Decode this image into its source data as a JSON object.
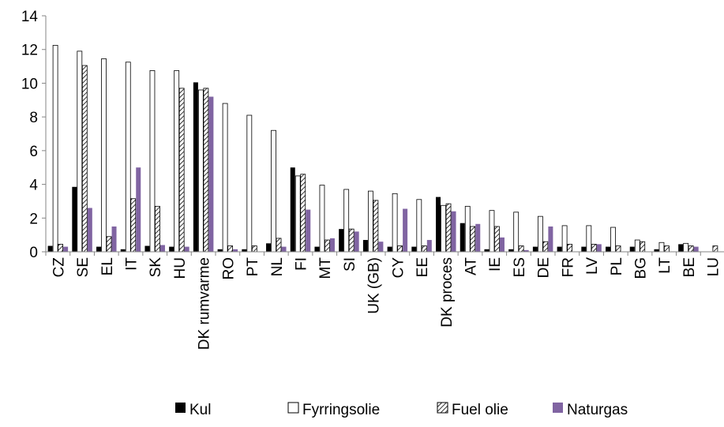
{
  "chart_data": {
    "type": "bar",
    "categories": [
      "CZ",
      "SE",
      "EL",
      "IT",
      "SK",
      "HU",
      "DK rumvarme",
      "RO",
      "PT",
      "NL",
      "FI",
      "MT",
      "SI",
      "UK (GB)",
      "CY",
      "EE",
      "DK proces",
      "AT",
      "IE",
      "ES",
      "DE",
      "FR",
      "LV",
      "PL",
      "BG",
      "LT",
      "BE",
      "LU"
    ],
    "series": [
      {
        "name": "Kul",
        "color": "#000000",
        "pattern": "solid",
        "values": [
          0.35,
          3.85,
          0.3,
          0.15,
          0.35,
          0.3,
          10.05,
          0.15,
          0.15,
          0.5,
          5.0,
          0.3,
          1.35,
          0.7,
          0.3,
          0.3,
          3.25,
          1.7,
          0.15,
          0.15,
          0.3,
          0.3,
          0.3,
          0.3,
          0.3,
          0.15,
          0.45,
          0.0
        ]
      },
      {
        "name": "Fyrringsolie",
        "color": "#ffffff",
        "pattern": "outline",
        "values": [
          12.25,
          11.9,
          11.45,
          11.25,
          10.75,
          10.75,
          9.6,
          8.8,
          8.1,
          7.2,
          4.5,
          3.95,
          3.7,
          3.6,
          3.45,
          3.1,
          2.75,
          2.7,
          2.45,
          2.35,
          2.1,
          1.55,
          1.55,
          1.45,
          0.7,
          0.55,
          0.5,
          0.0
        ]
      },
      {
        "name": "Fuel olie",
        "color": "#000000",
        "pattern": "hatch",
        "values": [
          0.45,
          11.05,
          0.9,
          3.15,
          2.7,
          9.7,
          9.7,
          0.35,
          0.35,
          0.8,
          4.6,
          0.7,
          1.35,
          3.05,
          0.35,
          0.35,
          2.85,
          1.5,
          1.5,
          0.35,
          0.6,
          0.45,
          0.45,
          0.35,
          0.6,
          0.35,
          0.35,
          0.35
        ]
      },
      {
        "name": "Naturgas",
        "color": "#8064a2",
        "pattern": "solid",
        "values": [
          0.3,
          2.6,
          1.5,
          5.0,
          0.4,
          0.3,
          9.2,
          0.15,
          0.0,
          0.3,
          2.5,
          0.8,
          1.2,
          0.6,
          2.55,
          0.7,
          2.4,
          1.65,
          0.85,
          0.1,
          1.5,
          0.0,
          0.45,
          0.0,
          0.0,
          0.0,
          0.3,
          0.0
        ]
      }
    ],
    "ylim": [
      0,
      14
    ],
    "yticks": [
      0,
      2,
      4,
      6,
      8,
      10,
      12,
      14
    ],
    "title": "",
    "xlabel": "",
    "ylabel": "",
    "grid": false,
    "legend": "bottom"
  }
}
